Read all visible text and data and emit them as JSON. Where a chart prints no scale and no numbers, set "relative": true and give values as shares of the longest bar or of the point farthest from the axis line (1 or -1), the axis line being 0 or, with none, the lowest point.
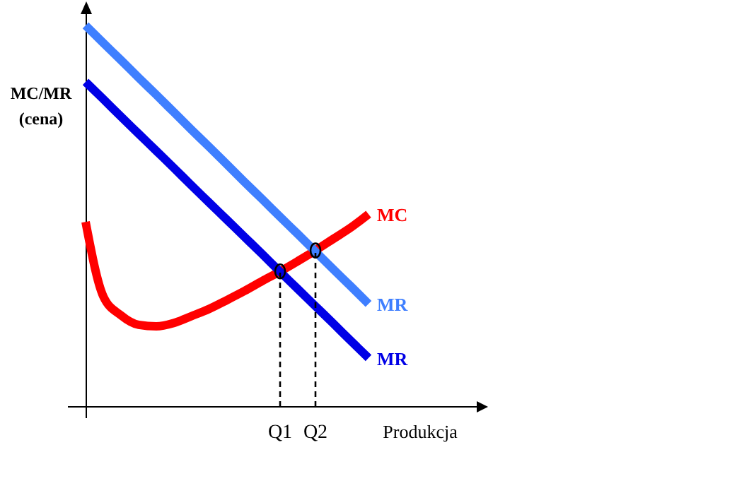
{
  "chart_data": {
    "type": "line",
    "relative": true,
    "ylabel": "MC/MR\n(cena)",
    "xlabel": "Produkcja",
    "categories": [
      null,
      null,
      null,
      null,
      null,
      null,
      null,
      null,
      null,
      null,
      null,
      "Q1",
      null,
      "Q2",
      null,
      null,
      null,
      null,
      null,
      null,
      null,
      null,
      null
    ],
    "marker": "none",
    "line_style": "solid",
    "series": [
      {
        "name": "MC",
        "color": "#ff0000",
        "values": [
          0.485,
          0.29,
          0.24,
          0.215,
          0.211,
          0.22,
          0.238,
          0.257,
          0.28,
          0.304,
          0.33,
          0.355,
          0.382,
          0.41,
          0.44,
          0.47,
          0.505,
          null,
          null,
          null,
          null,
          null,
          null
        ]
      },
      {
        "name": "MR",
        "color": "#3f7fff",
        "values": [
          1,
          0.954,
          0.909,
          0.863,
          0.818,
          0.772,
          0.726,
          0.681,
          0.635,
          0.589,
          0.544,
          0.498,
          0.453,
          0.407,
          0.361,
          0.316,
          0.27,
          null,
          null,
          null,
          null,
          null,
          null
        ]
      },
      {
        "name": "MR",
        "color": "#0000e6",
        "values": [
          0.852,
          0.807,
          0.761,
          0.716,
          0.671,
          0.626,
          0.58,
          0.535,
          0.49,
          0.445,
          0.4,
          0.354,
          0.309,
          0.264,
          0.219,
          0.173,
          0.128,
          null,
          null,
          null,
          null,
          null,
          null
        ]
      },
      {
        "type": "lollipop",
        "marker": "circle",
        "line_style": "dashed",
        "color": "#000000",
        "values": [
          null,
          null,
          null,
          null,
          null,
          null,
          null,
          null,
          null,
          null,
          null,
          0.355,
          null,
          0.41,
          null,
          null,
          null,
          null,
          null,
          null,
          null,
          null,
          null
        ]
      }
    ]
  }
}
